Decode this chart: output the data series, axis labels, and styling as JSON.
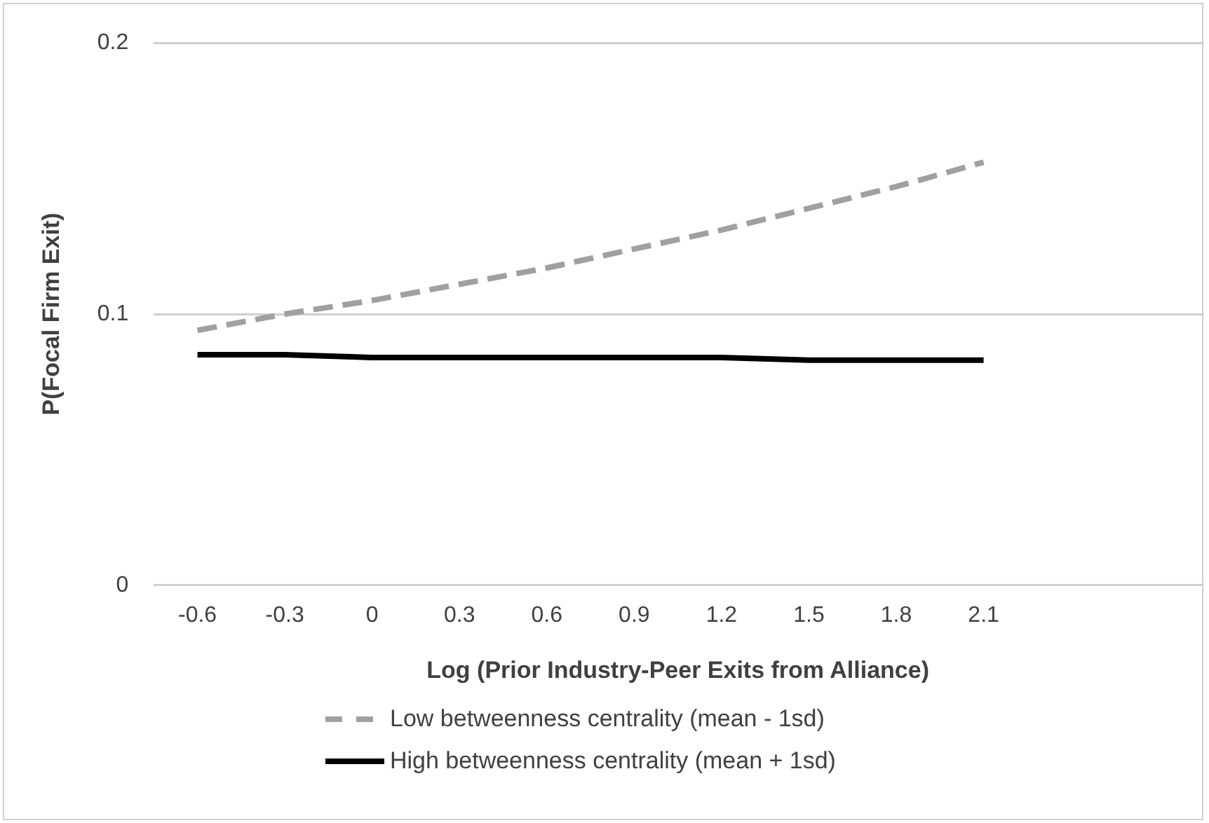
{
  "chart_data": {
    "type": "line",
    "xlabel": "Log (Prior Industry-Peer Exits from Alliance)",
    "ylabel": "P(Focal Firm Exit)",
    "x": [
      -0.6,
      -0.3,
      0,
      0.3,
      0.6,
      0.9,
      1.2,
      1.5,
      1.8,
      2.1
    ],
    "xlim": [
      -0.75,
      2.85
    ],
    "xticks": [
      -0.6,
      -0.3,
      0,
      0.3,
      0.6,
      0.9,
      1.2,
      1.5,
      1.8,
      2.1
    ],
    "ylim": [
      0,
      0.2
    ],
    "yticks": [
      0,
      0.1,
      0.2
    ],
    "grid": "y",
    "legend": "bottom",
    "marker": "none",
    "series": [
      {
        "name": "Low betweenness centrality (mean - 1sd)",
        "color": "#a0a0a0",
        "line_style": "dashed",
        "values": [
          0.094,
          0.1,
          0.105,
          0.111,
          0.117,
          0.124,
          0.131,
          0.139,
          0.147,
          0.156
        ]
      },
      {
        "name": "High betweenness centrality (mean + 1sd)",
        "color": "#000000",
        "line_style": "solid",
        "values": [
          0.085,
          0.085,
          0.084,
          0.084,
          0.084,
          0.084,
          0.084,
          0.083,
          0.083,
          0.083
        ]
      }
    ]
  }
}
